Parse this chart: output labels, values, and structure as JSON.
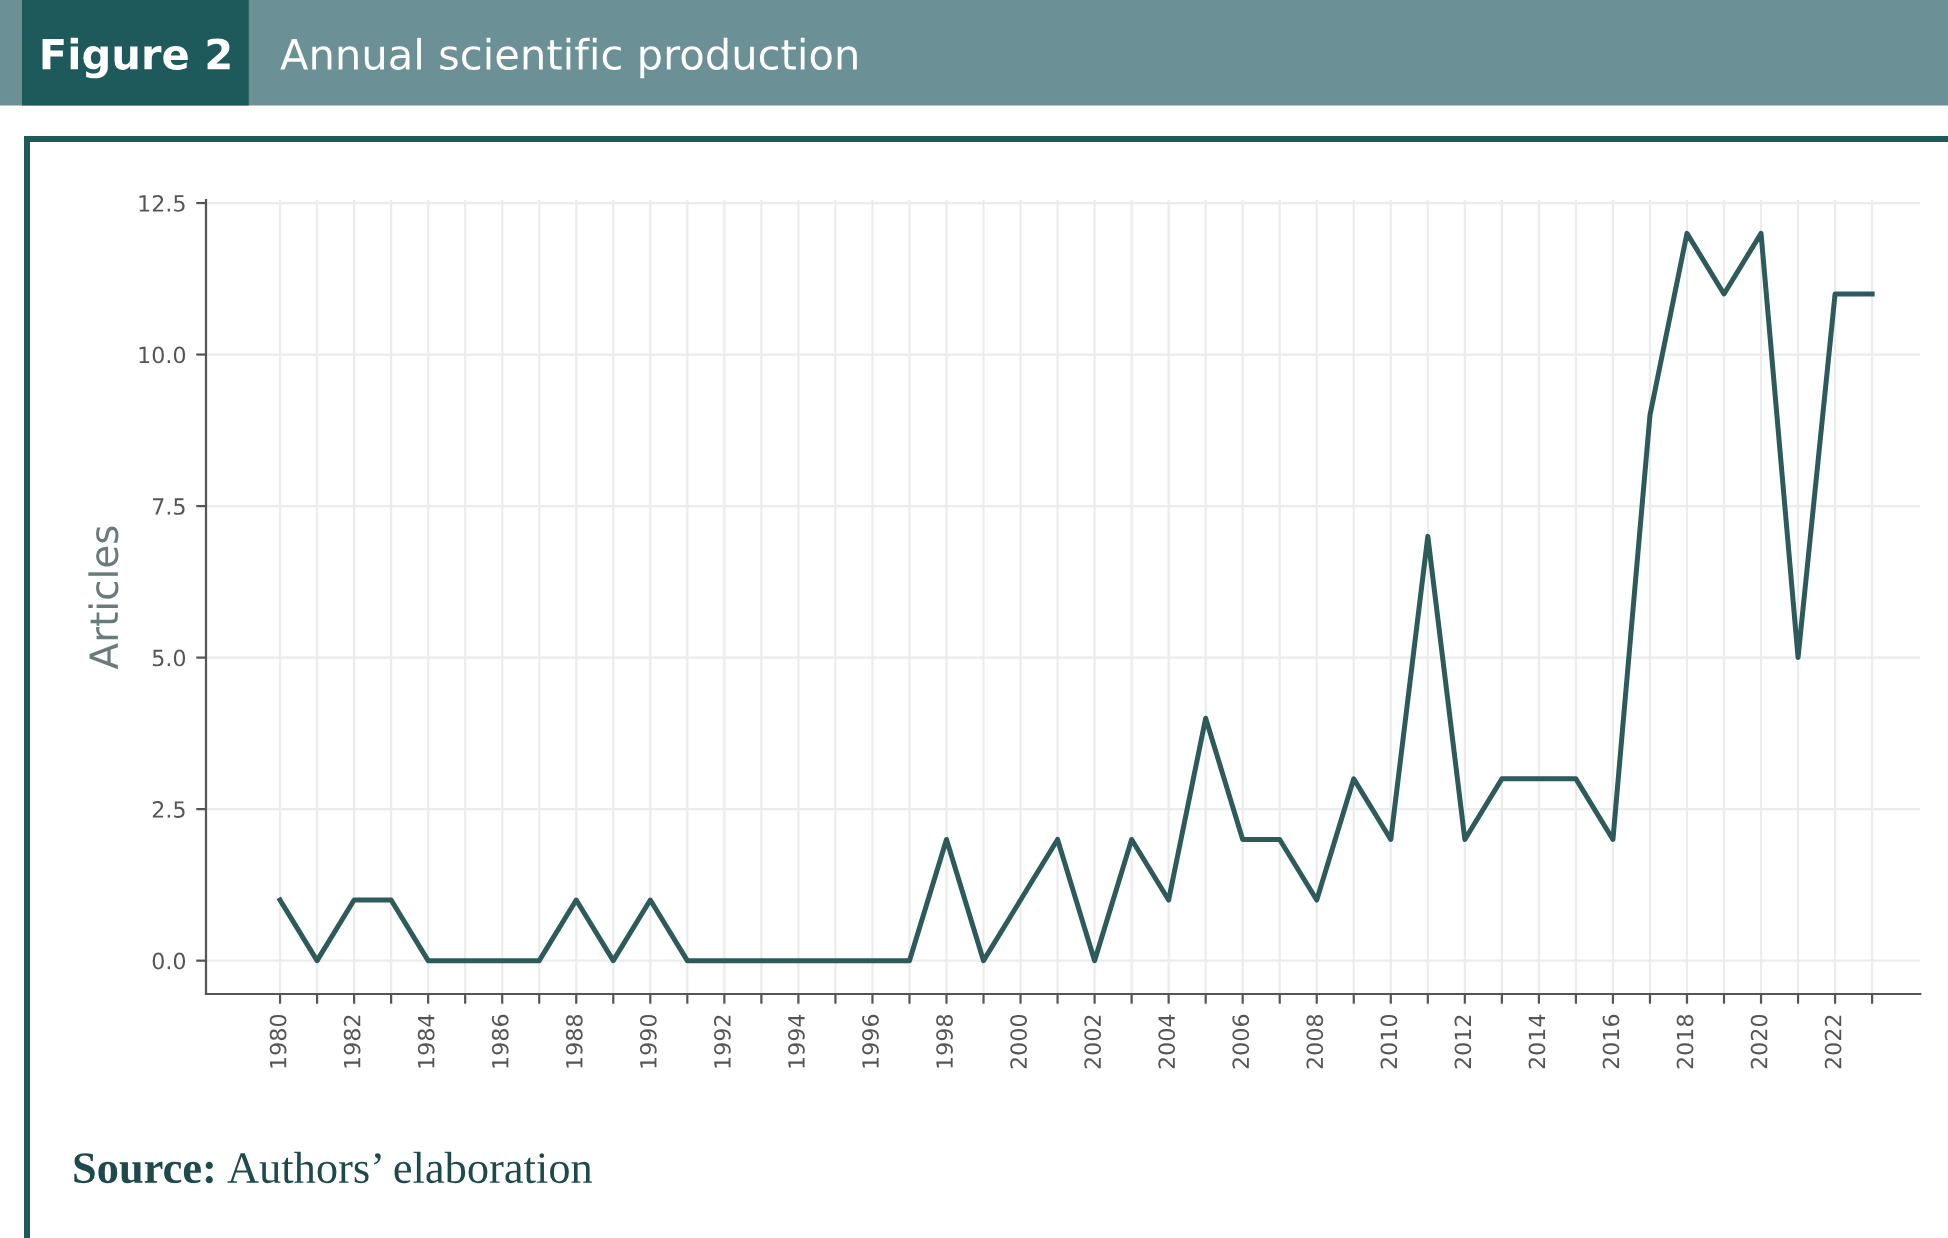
{
  "chart_data": {
    "type": "line",
    "title": "Annual scientific production",
    "ylabel": "Articles",
    "annotations": [
      "Figure 2",
      "Source: Authors’ elaboration"
    ],
    "x": [
      1980,
      1981,
      1982,
      1983,
      1984,
      1985,
      1986,
      1987,
      1988,
      1989,
      1990,
      1991,
      1992,
      1993,
      1994,
      1995,
      1996,
      1997,
      1998,
      1999,
      2000,
      2001,
      2002,
      2003,
      2004,
      2005,
      2006,
      2007,
      2008,
      2009,
      2010,
      2011,
      2012,
      2013,
      2014,
      2015,
      2016,
      2017,
      2018,
      2019,
      2020,
      2021,
      2022,
      2023
    ],
    "series": [
      {
        "color": "#2d5a5a",
        "values": [
          1,
          0,
          1,
          1,
          0,
          0,
          0,
          0,
          1,
          0,
          1,
          0,
          0,
          0,
          0,
          0,
          0,
          0,
          2,
          0,
          1,
          2,
          0,
          2,
          1,
          4,
          2,
          2,
          1,
          3,
          2,
          7,
          2,
          3,
          3,
          3,
          2,
          9,
          12,
          11,
          12,
          5,
          11,
          11
        ]
      }
    ],
    "xlim": [
      1978,
      2024.3
    ],
    "ylim": [
      -0.55,
      12.55
    ],
    "xticks": [
      1980,
      {
        "value": 1981,
        "label": null
      },
      1982,
      {
        "value": 1983,
        "label": null
      },
      1984,
      {
        "value": 1985,
        "label": null
      },
      1986,
      {
        "value": 1987,
        "label": null
      },
      1988,
      {
        "value": 1989,
        "label": null
      },
      1990,
      {
        "value": 1991,
        "label": null
      },
      1992,
      {
        "value": 1993,
        "label": null
      },
      1994,
      {
        "value": 1995,
        "label": null
      },
      1996,
      {
        "value": 1997,
        "label": null
      },
      1998,
      {
        "value": 1999,
        "label": null
      },
      2000,
      {
        "value": 2001,
        "label": null
      },
      2002,
      {
        "value": 2003,
        "label": null
      },
      2004,
      {
        "value": 2005,
        "label": null
      },
      2006,
      {
        "value": 2007,
        "label": null
      },
      2008,
      {
        "value": 2009,
        "label": null
      },
      2010,
      {
        "value": 2011,
        "label": null
      },
      2012,
      {
        "value": 2013,
        "label": null
      },
      2014,
      {
        "value": 2015,
        "label": null
      },
      2016,
      {
        "value": 2017,
        "label": null
      },
      2018,
      {
        "value": 2019,
        "label": null
      },
      2020,
      {
        "value": 2021,
        "label": null
      },
      2022,
      {
        "value": 2023,
        "label": null
      }
    ],
    "yticks": [
      {
        "value": 0,
        "label": "0.0"
      },
      {
        "value": 2.5,
        "label": "2.5"
      },
      {
        "value": 5,
        "label": "5.0"
      },
      {
        "value": 7.5,
        "label": "7.5"
      },
      {
        "value": 10,
        "label": "10.0"
      },
      {
        "value": 12.5,
        "label": "12.5"
      }
    ],
    "grid": true,
    "legend": false,
    "marker": "none",
    "line_style": "solid"
  }
}
